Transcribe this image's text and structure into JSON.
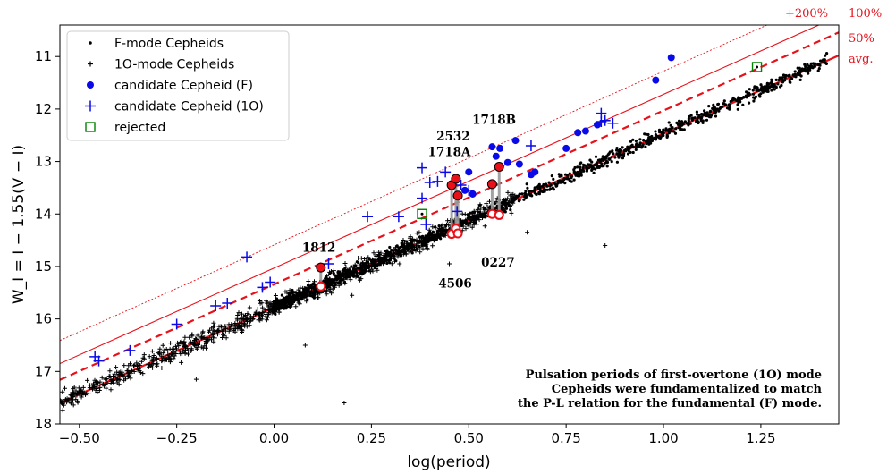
{
  "chart_data": {
    "type": "scatter",
    "xlabel": "log(period)",
    "ylabel": "W_I = I − 1.55(V − I)",
    "xlim": [
      -0.55,
      1.45
    ],
    "ylim": [
      18,
      10.4
    ],
    "y_inverted": true,
    "x_ticks": [
      -0.5,
      -0.25,
      0.0,
      0.25,
      0.5,
      0.75,
      1.0,
      1.25
    ],
    "x_tick_labels": [
      "−0.50",
      "−0.25",
      "0.00",
      "0.25",
      "0.50",
      "0.75",
      "1.00",
      "1.25"
    ],
    "y_ticks": [
      11,
      12,
      13,
      14,
      15,
      16,
      17,
      18
    ],
    "y_tick_labels": [
      "11",
      "12",
      "13",
      "14",
      "15",
      "16",
      "17",
      "18"
    ],
    "legend": {
      "placement": "top-left",
      "entries": [
        {
          "label": "F-mode Cepheids",
          "marker": "dot",
          "color": "#000000"
        },
        {
          "label": "1O-mode Cepheids",
          "marker": "plus-small",
          "color": "#000000"
        },
        {
          "label": "candidate Cepheid (F)",
          "marker": "circle",
          "color": "#0a0ae8"
        },
        {
          "label": "candidate Cepheid (1O)",
          "marker": "plus",
          "color": "#0a0ae8"
        },
        {
          "label": "rejected",
          "marker": "square-open",
          "color": "#008000"
        }
      ]
    },
    "reference_lines": [
      {
        "label": "avg.",
        "style": "solid-thick",
        "slope": -3.31,
        "intercept": 15.78
      },
      {
        "label": "50%",
        "style": "dashed",
        "slope": -3.31,
        "intercept": 15.34
      },
      {
        "label": "100%",
        "style": "solid-thin",
        "slope": -3.31,
        "intercept": 15.03
      },
      {
        "label": "+200%",
        "style": "dotted",
        "slope": -3.31,
        "intercept": 14.59
      }
    ],
    "population": {
      "description_free": true,
      "f_mode": {
        "slope": -3.31,
        "intercept": 15.78,
        "x_range": [
          0.0,
          1.42
        ],
        "scatter": 0.09
      },
      "o1_mode": {
        "slope": -3.31,
        "intercept": 15.78,
        "x_range": [
          -0.55,
          0.62
        ],
        "scatter": 0.13
      }
    },
    "candidate_F": [
      [
        0.56,
        12.72
      ],
      [
        0.57,
        12.9
      ],
      [
        0.6,
        13.02
      ],
      [
        0.62,
        12.6
      ],
      [
        0.58,
        12.75
      ],
      [
        0.5,
        13.2
      ],
      [
        0.49,
        13.55
      ],
      [
        0.51,
        13.62
      ],
      [
        0.63,
        13.05
      ],
      [
        0.66,
        13.25
      ],
      [
        0.67,
        13.2
      ],
      [
        0.75,
        12.75
      ],
      [
        0.78,
        12.45
      ],
      [
        0.8,
        12.42
      ],
      [
        0.83,
        12.3
      ],
      [
        0.98,
        11.45
      ],
      [
        1.02,
        11.02
      ]
    ],
    "candidate_1O": [
      [
        -0.46,
        16.72
      ],
      [
        -0.45,
        16.8
      ],
      [
        -0.37,
        16.6
      ],
      [
        -0.25,
        16.1
      ],
      [
        -0.12,
        15.7
      ],
      [
        -0.15,
        15.75
      ],
      [
        -0.03,
        15.4
      ],
      [
        -0.01,
        15.3
      ],
      [
        -0.07,
        14.82
      ],
      [
        0.14,
        14.95
      ],
      [
        0.24,
        14.05
      ],
      [
        0.32,
        14.05
      ],
      [
        0.38,
        13.7
      ],
      [
        0.39,
        14.2
      ],
      [
        0.4,
        13.4
      ],
      [
        0.42,
        13.38
      ],
      [
        0.38,
        13.12
      ],
      [
        0.44,
        13.2
      ],
      [
        0.47,
        13.95
      ],
      [
        0.48,
        13.45
      ],
      [
        0.5,
        13.55
      ],
      [
        0.66,
        12.7
      ],
      [
        0.84,
        12.08
      ],
      [
        0.84,
        12.24
      ],
      [
        0.85,
        12.22
      ],
      [
        0.87,
        12.27
      ]
    ],
    "rejected": [
      [
        0.38,
        14.0
      ],
      [
        1.24,
        11.2
      ]
    ],
    "fundamentalized_pairs": [
      {
        "x": 0.12,
        "y_obs": 15.02,
        "y_fund": 15.38
      },
      {
        "x": 0.456,
        "y_obs": 13.45,
        "y_fund": 14.38
      },
      {
        "x": 0.467,
        "y_obs": 13.33,
        "y_fund": 14.28
      },
      {
        "x": 0.472,
        "y_obs": 13.65,
        "y_fund": 14.37
      },
      {
        "x": 0.56,
        "y_obs": 13.43,
        "y_fund": 14.0
      },
      {
        "x": 0.578,
        "y_obs": 13.1,
        "y_fund": 14.02
      }
    ],
    "annotations": [
      {
        "text": "1718B",
        "x": 0.565,
        "y": 12.28
      },
      {
        "text": "2532",
        "x": 0.46,
        "y": 12.6
      },
      {
        "text": "1718A",
        "x": 0.45,
        "y": 12.9
      },
      {
        "text": "1812",
        "x": 0.115,
        "y": 14.72
      },
      {
        "text": "0227",
        "x": 0.575,
        "y": 15.0
      },
      {
        "text": "4506",
        "x": 0.465,
        "y": 15.4
      }
    ],
    "note": [
      "Pulsation periods of first-overtone (1O) mode",
      "Cepheids were fundamentalized to match",
      "the P-L relation for the fundamental (F) mode."
    ]
  }
}
